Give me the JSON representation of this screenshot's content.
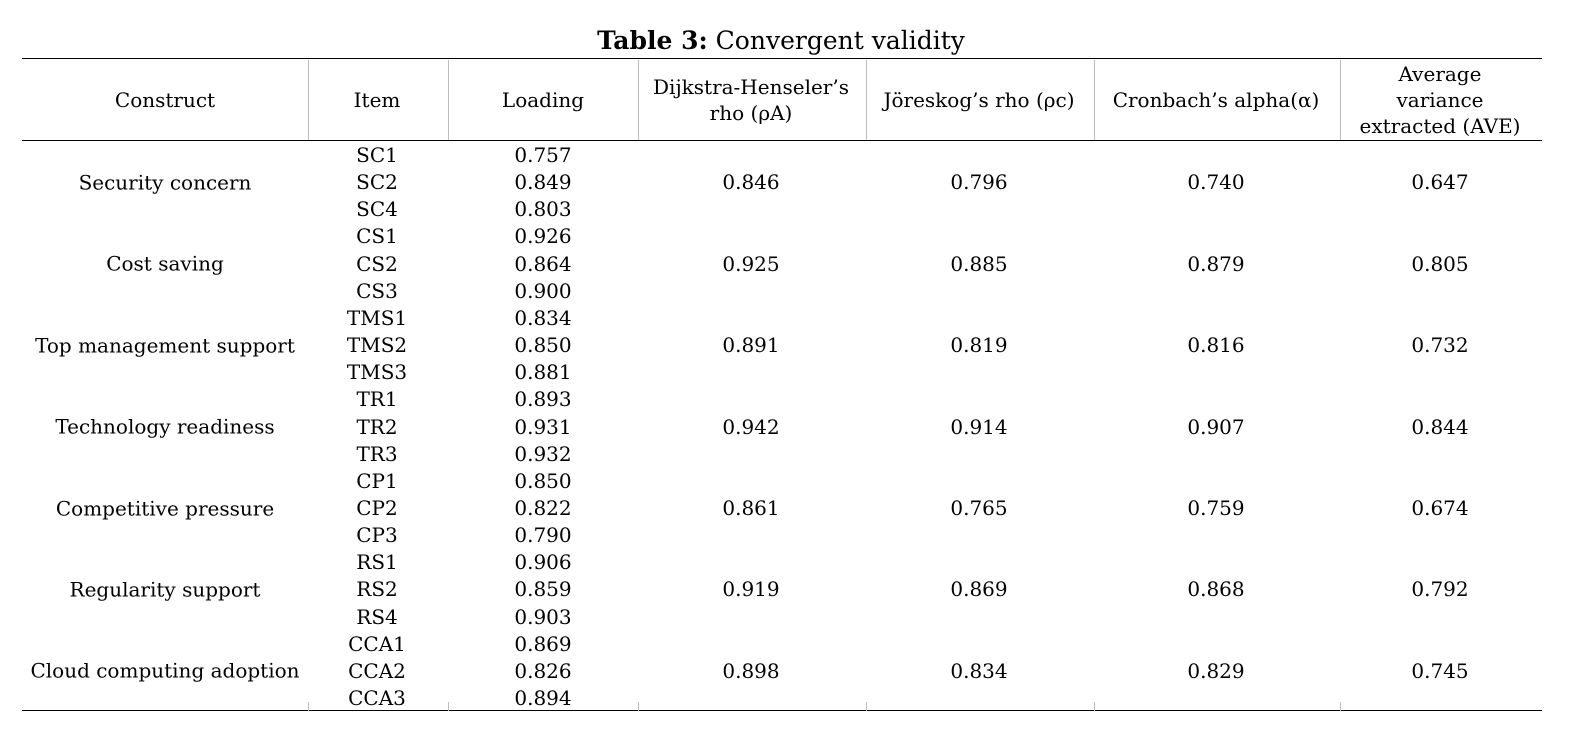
{
  "caption": {
    "label": "Table 3:",
    "text": "Convergent validity"
  },
  "headers": {
    "construct": "Construct",
    "item": "Item",
    "loading": "Loading",
    "rho_a": "Dijkstra-Henseler’s rho (ρA)",
    "rho_c": "Jöreskog’s rho (ρc)",
    "alpha": "Cronbach’s alpha(α)",
    "ave": "Average variance extracted (AVE)"
  },
  "groups": [
    {
      "construct": "Security concern",
      "items": [
        {
          "item": "SC1",
          "loading": "0.757"
        },
        {
          "item": "SC2",
          "loading": "0.849"
        },
        {
          "item": "SC4",
          "loading": "0.803"
        }
      ],
      "rho_a": "0.846",
      "rho_c": "0.796",
      "alpha": "0.740",
      "ave": "0.647"
    },
    {
      "construct": "Cost saving",
      "items": [
        {
          "item": "CS1",
          "loading": "0.926"
        },
        {
          "item": "CS2",
          "loading": "0.864"
        },
        {
          "item": "CS3",
          "loading": "0.900"
        }
      ],
      "rho_a": "0.925",
      "rho_c": "0.885",
      "alpha": "0.879",
      "ave": "0.805"
    },
    {
      "construct": "Top management support",
      "items": [
        {
          "item": "TMS1",
          "loading": "0.834"
        },
        {
          "item": "TMS2",
          "loading": "0.850"
        },
        {
          "item": "TMS3",
          "loading": "0.881"
        }
      ],
      "rho_a": "0.891",
      "rho_c": "0.819",
      "alpha": "0.816",
      "ave": "0.732"
    },
    {
      "construct": "Technology readiness",
      "items": [
        {
          "item": "TR1",
          "loading": "0.893"
        },
        {
          "item": "TR2",
          "loading": "0.931"
        },
        {
          "item": "TR3",
          "loading": "0.932"
        }
      ],
      "rho_a": "0.942",
      "rho_c": "0.914",
      "alpha": "0.907",
      "ave": "0.844"
    },
    {
      "construct": "Competitive pressure",
      "items": [
        {
          "item": "CP1",
          "loading": "0.850"
        },
        {
          "item": "CP2",
          "loading": "0.822"
        },
        {
          "item": "CP3",
          "loading": "0.790"
        }
      ],
      "rho_a": "0.861",
      "rho_c": "0.765",
      "alpha": "0.759",
      "ave": "0.674"
    },
    {
      "construct": "Regularity support",
      "items": [
        {
          "item": "RS1",
          "loading": "0.906"
        },
        {
          "item": "RS2",
          "loading": "0.859"
        },
        {
          "item": "RS4",
          "loading": "0.903"
        }
      ],
      "rho_a": "0.919",
      "rho_c": "0.869",
      "alpha": "0.868",
      "ave": "0.792"
    },
    {
      "construct": "Cloud computing adoption",
      "items": [
        {
          "item": "CCA1",
          "loading": "0.869"
        },
        {
          "item": "CCA2",
          "loading": "0.826"
        },
        {
          "item": "CCA3",
          "loading": "0.894"
        }
      ],
      "rho_a": "0.898",
      "rho_c": "0.834",
      "alpha": "0.829",
      "ave": "0.745"
    }
  ]
}
